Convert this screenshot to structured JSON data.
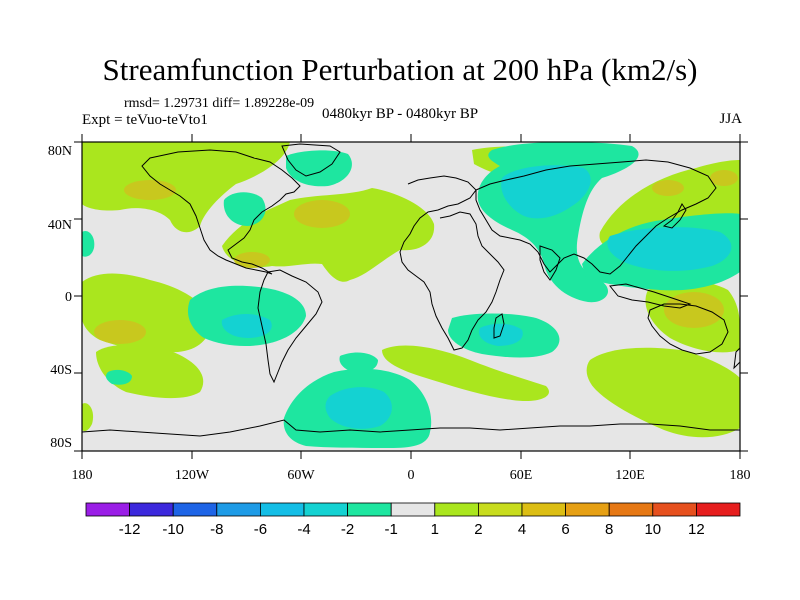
{
  "title": "Streamfunction Perturbation at 200 hPa (km2/s)",
  "stats": "rmsd= 1.29731 diff= 1.89228e-09",
  "expt": "Expt = teVuo-teVto1",
  "period": "0480kyr BP - 0480kyr BP",
  "season": "JJA",
  "map": {
    "lat_labels": [
      "80N",
      "40N",
      "0",
      "40S",
      "80S"
    ],
    "lon_labels": [
      "180",
      "120W",
      "60W",
      "0",
      "60E",
      "120E",
      "180"
    ]
  },
  "colorbar": {
    "labels": [
      "-12",
      "-10",
      "-8",
      "-6",
      "-4",
      "-2",
      "-1",
      "1",
      "2",
      "4",
      "6",
      "8",
      "10",
      "12"
    ],
    "colors": [
      "#9a1ee6",
      "#3c28dc",
      "#1e64e6",
      "#1e9be6",
      "#14bee6",
      "#14d2d2",
      "#1ee6a0",
      "#e6e6e6",
      "#aae61e",
      "#c8dc1e",
      "#dcbe14",
      "#e6a014",
      "#e67814",
      "#e6501e",
      "#e61e1e"
    ]
  },
  "field_colors": {
    "neutral": "#e6e6e6",
    "pos2": "#aae61e",
    "pos4": "#c8c81e",
    "neg1": "#1ee6a0",
    "neg2": "#14d2d2",
    "neg4": "#1eb4dc"
  }
}
